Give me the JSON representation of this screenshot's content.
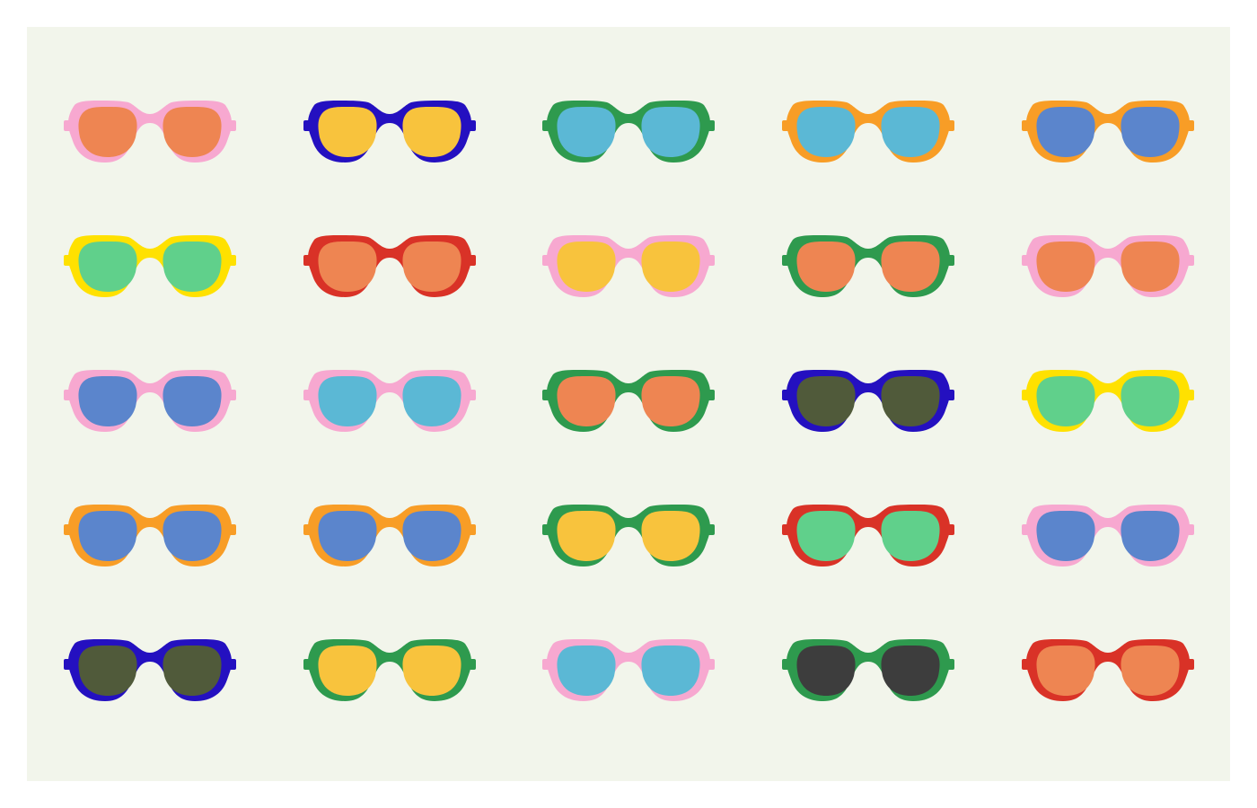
{
  "palette": {
    "background": "#f2f5eb",
    "page": "#ffffff"
  },
  "icon": "sunglasses-icon",
  "grid": {
    "rows": 5,
    "columns": 5
  },
  "sunglasses": [
    [
      {
        "frame": "#f7a8d0",
        "lens": "#ee8552"
      },
      {
        "frame": "#2410c0",
        "lens": "#f8c33d"
      },
      {
        "frame": "#2e9a4e",
        "lens": "#5bb8d5"
      },
      {
        "frame": "#f89d26",
        "lens": "#5bb8d5"
      },
      {
        "frame": "#f89d26",
        "lens": "#5b85cc"
      }
    ],
    [
      {
        "frame": "#ffe100",
        "lens": "#60d08b"
      },
      {
        "frame": "#d93227",
        "lens": "#ee8552"
      },
      {
        "frame": "#f7a8d0",
        "lens": "#f8c33d"
      },
      {
        "frame": "#2e9a4e",
        "lens": "#ee8552"
      },
      {
        "frame": "#f7a8d0",
        "lens": "#ee8552"
      }
    ],
    [
      {
        "frame": "#f7a8d0",
        "lens": "#5b85cc"
      },
      {
        "frame": "#f7a8d0",
        "lens": "#5bb8d5"
      },
      {
        "frame": "#2e9a4e",
        "lens": "#ee8552"
      },
      {
        "frame": "#2410c0",
        "lens": "#505a3a"
      },
      {
        "frame": "#ffe100",
        "lens": "#60d08b"
      }
    ],
    [
      {
        "frame": "#f89d26",
        "lens": "#5b85cc"
      },
      {
        "frame": "#f89d26",
        "lens": "#5b85cc"
      },
      {
        "frame": "#2e9a4e",
        "lens": "#f8c33d"
      },
      {
        "frame": "#d93227",
        "lens": "#60d08b"
      },
      {
        "frame": "#f7a8d0",
        "lens": "#5b85cc"
      }
    ],
    [
      {
        "frame": "#2410c0",
        "lens": "#505a3a"
      },
      {
        "frame": "#2e9a4e",
        "lens": "#f8c33d"
      },
      {
        "frame": "#f7a8d0",
        "lens": "#5bb8d5"
      },
      {
        "frame": "#2e9a4e",
        "lens": "#3d3d3d"
      },
      {
        "frame": "#d93227",
        "lens": "#ee8552"
      }
    ]
  ]
}
